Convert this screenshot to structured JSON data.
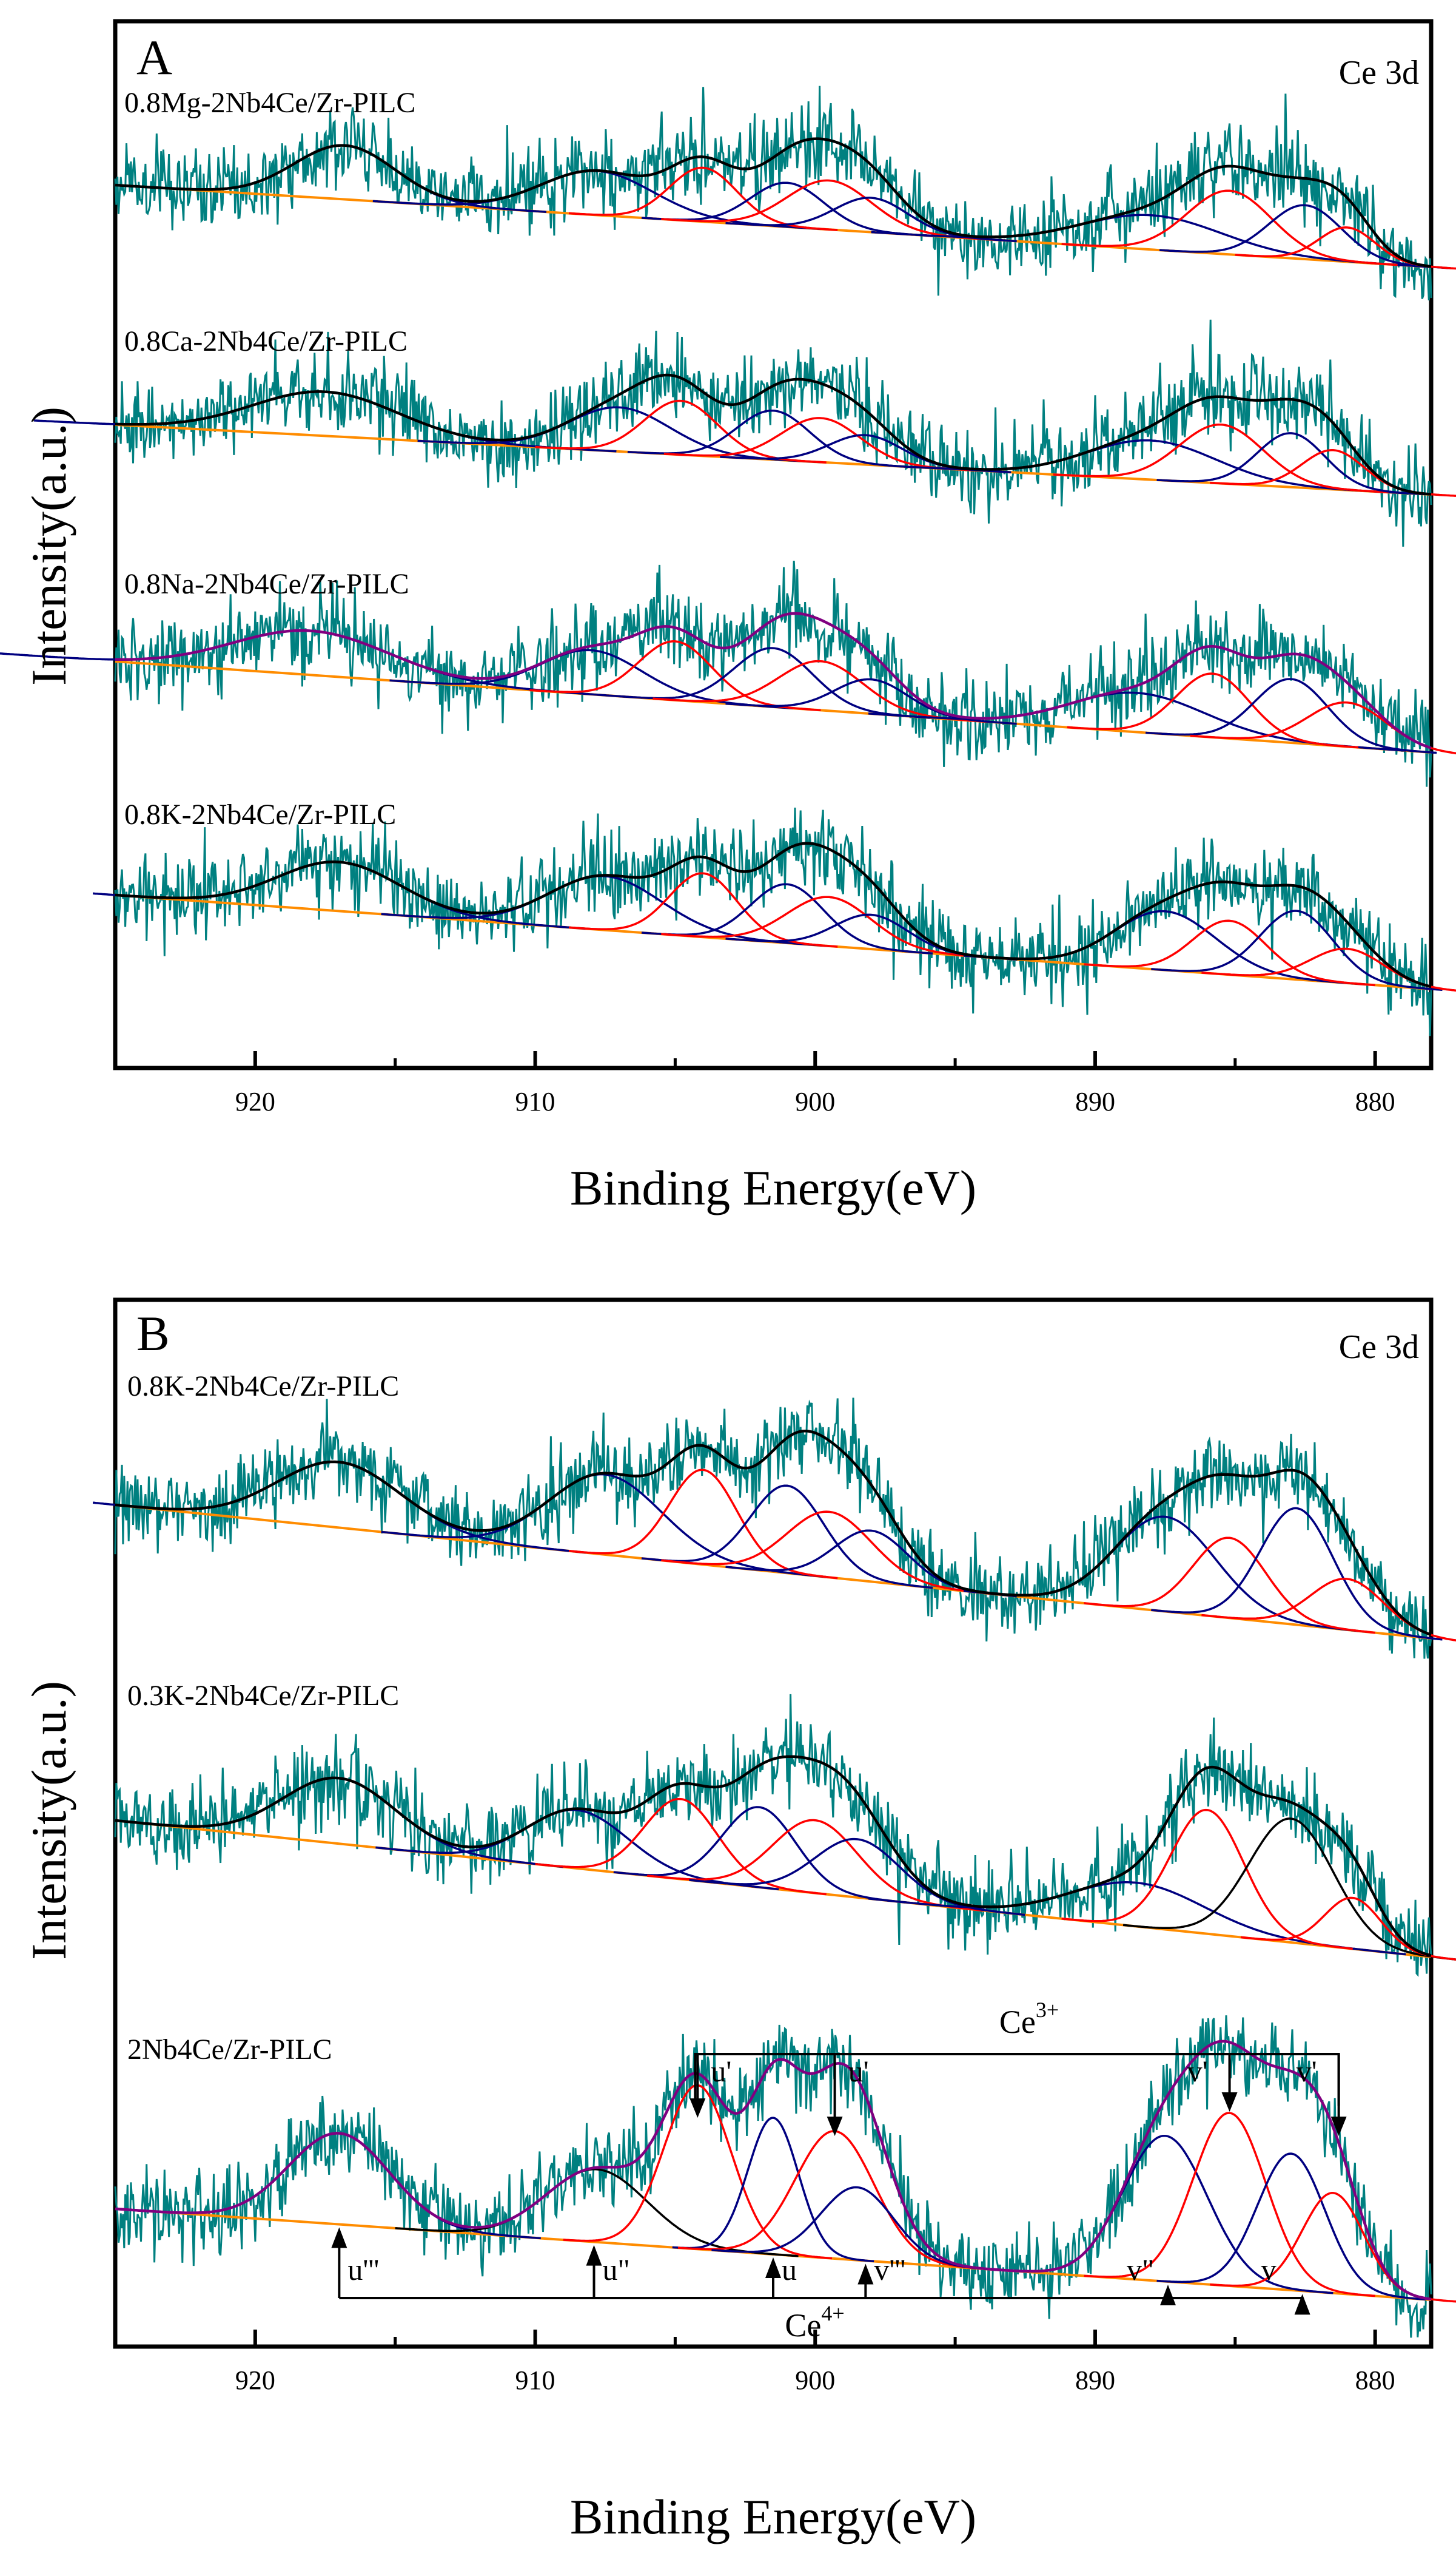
{
  "chart_data": [
    {
      "type": "line",
      "panel": "A",
      "corner_label": "Ce 3d",
      "xlabel": "Binding Energy(eV)",
      "ylabel": "Intensity(a.u.)",
      "xlim": [
        925,
        878
      ],
      "xticks": [
        920,
        910,
        900,
        890,
        880
      ],
      "series": [
        {
          "name": "0.8Mg-2Nb4Ce/Zr-PILC",
          "envelope_color": "#000000",
          "scale": 0.85,
          "peaks": [
            {
              "center": 916.8,
              "height": 0.55,
              "width": 1.8,
              "color": "#000080"
            },
            {
              "center": 907.8,
              "height": 0.45,
              "width": 2.0,
              "color": "#000080"
            },
            {
              "center": 904.0,
              "height": 0.55,
              "width": 1.2,
              "color": "#ff0000"
            },
            {
              "center": 901.0,
              "height": 0.45,
              "width": 1.3,
              "color": "#000080"
            },
            {
              "center": 899.5,
              "height": 0.5,
              "width": 1.5,
              "color": "#ff0000"
            },
            {
              "center": 898.0,
              "height": 0.35,
              "width": 1.3,
              "color": "#000080"
            },
            {
              "center": 888.0,
              "height": 0.35,
              "width": 2.5,
              "color": "#000080"
            },
            {
              "center": 885.2,
              "height": 0.65,
              "width": 1.5,
              "color": "#ff0000"
            },
            {
              "center": 882.5,
              "height": 0.55,
              "width": 1.3,
              "color": "#000080"
            },
            {
              "center": 881.0,
              "height": 0.35,
              "width": 1.0,
              "color": "#ff0000"
            }
          ]
        },
        {
          "name": "0.8Ca-2Nb4Ce/Zr-PILC",
          "envelope_color": "#000000",
          "scale": 0.85,
          "peaks": [
            {
              "center": 917.5,
              "height": 0.45,
              "width": 2.6,
              "color": "#000080"
            },
            {
              "center": 907.0,
              "height": 0.45,
              "width": 1.8,
              "color": "#000080"
            },
            {
              "center": 904.8,
              "height": 0.55,
              "width": 1.3,
              "color": "#ff0000"
            },
            {
              "center": 901.5,
              "height": 0.5,
              "width": 1.3,
              "color": "#000080"
            },
            {
              "center": 899.8,
              "height": 0.45,
              "width": 1.4,
              "color": "#ff0000"
            },
            {
              "center": 898.2,
              "height": 0.3,
              "width": 1.3,
              "color": "#000080"
            },
            {
              "center": 888.0,
              "height": 0.4,
              "width": 2.3,
              "color": "#000080"
            },
            {
              "center": 885.5,
              "height": 0.6,
              "width": 1.5,
              "color": "#ff0000"
            },
            {
              "center": 883.0,
              "height": 0.55,
              "width": 1.2,
              "color": "#000080"
            },
            {
              "center": 881.5,
              "height": 0.4,
              "width": 1.1,
              "color": "#ff0000"
            }
          ]
        },
        {
          "name": "0.8Na-2Nb4Ce/Zr-PILC",
          "envelope_color": "#800080",
          "scale": 0.85,
          "peaks": [
            {
              "center": 918.0,
              "height": 0.45,
              "width": 2.8,
              "color": "#000080"
            },
            {
              "center": 908.0,
              "height": 0.45,
              "width": 1.8,
              "color": "#000080"
            },
            {
              "center": 905.0,
              "height": 0.6,
              "width": 1.3,
              "color": "#ff0000"
            },
            {
              "center": 901.5,
              "height": 0.6,
              "width": 1.4,
              "color": "#000080"
            },
            {
              "center": 899.8,
              "height": 0.5,
              "width": 1.5,
              "color": "#ff0000"
            },
            {
              "center": 898.0,
              "height": 0.35,
              "width": 1.3,
              "color": "#000080"
            },
            {
              "center": 888.5,
              "height": 0.4,
              "width": 2.4,
              "color": "#000080"
            },
            {
              "center": 885.8,
              "height": 0.65,
              "width": 1.3,
              "color": "#ff0000"
            },
            {
              "center": 883.0,
              "height": 0.65,
              "width": 1.3,
              "color": "#000080"
            },
            {
              "center": 881.0,
              "height": 0.45,
              "width": 1.4,
              "color": "#ff0000"
            }
          ]
        },
        {
          "name": "0.8K-2Nb4Ce/Zr-PILC",
          "envelope_color": "#000000",
          "scale": 0.85,
          "peaks": [
            {
              "center": 917.0,
              "height": 0.5,
              "width": 2.2,
              "color": "#000080"
            },
            {
              "center": 907.5,
              "height": 0.55,
              "width": 2.0,
              "color": "#000080"
            },
            {
              "center": 904.0,
              "height": 0.65,
              "width": 1.2,
              "color": "#ff0000"
            },
            {
              "center": 901.0,
              "height": 0.6,
              "width": 1.3,
              "color": "#000080"
            },
            {
              "center": 899.5,
              "height": 0.5,
              "width": 1.5,
              "color": "#ff0000"
            },
            {
              "center": 898.0,
              "height": 0.35,
              "width": 1.3,
              "color": "#000080"
            },
            {
              "center": 887.5,
              "height": 0.6,
              "width": 1.8,
              "color": "#000080"
            },
            {
              "center": 885.2,
              "height": 0.55,
              "width": 1.3,
              "color": "#ff0000"
            },
            {
              "center": 882.8,
              "height": 0.7,
              "width": 1.3,
              "color": "#000080"
            },
            {
              "center": 881.0,
              "height": 0.35,
              "width": 1.3,
              "color": "#ff0000"
            }
          ]
        }
      ]
    },
    {
      "type": "line",
      "panel": "B",
      "corner_label": "Ce 3d",
      "xlabel": "Binding Energy(eV)",
      "ylabel": "Intensity(a.u.)",
      "xlim": [
        925,
        878
      ],
      "xticks": [
        920,
        910,
        900,
        890,
        880
      ],
      "series": [
        {
          "name": "0.8K-2Nb4Ce/Zr-PILC",
          "envelope_color": "#000000",
          "scale": 1.0,
          "peaks": [
            {
              "center": 917.0,
              "height": 0.45,
              "width": 2.2,
              "color": "#000080"
            },
            {
              "center": 907.5,
              "height": 0.55,
              "width": 2.0,
              "color": "#000080"
            },
            {
              "center": 904.0,
              "height": 0.65,
              "width": 1.2,
              "color": "#ff0000"
            },
            {
              "center": 901.0,
              "height": 0.6,
              "width": 1.3,
              "color": "#000080"
            },
            {
              "center": 899.5,
              "height": 0.45,
              "width": 1.5,
              "color": "#ff0000"
            },
            {
              "center": 898.0,
              "height": 0.35,
              "width": 1.3,
              "color": "#000080"
            },
            {
              "center": 887.5,
              "height": 0.65,
              "width": 1.8,
              "color": "#000080"
            },
            {
              "center": 885.2,
              "height": 0.55,
              "width": 1.3,
              "color": "#ff0000"
            },
            {
              "center": 882.8,
              "height": 0.8,
              "width": 1.3,
              "color": "#000080"
            },
            {
              "center": 881.0,
              "height": 0.35,
              "width": 1.3,
              "color": "#ff0000"
            }
          ]
        },
        {
          "name": "0.3K-2Nb4Ce/Zr-PILC",
          "envelope_color": "#000000",
          "scale": 1.0,
          "peaks": [
            {
              "center": 917.0,
              "height": 0.45,
              "width": 2.0,
              "color": "#000080"
            },
            {
              "center": 908.5,
              "height": 0.4,
              "width": 1.8,
              "color": "#000080"
            },
            {
              "center": 904.8,
              "height": 0.55,
              "width": 1.3,
              "color": "#ff0000"
            },
            {
              "center": 902.0,
              "height": 0.55,
              "width": 1.3,
              "color": "#000080"
            },
            {
              "center": 900.0,
              "height": 0.5,
              "width": 1.5,
              "color": "#ff0000"
            },
            {
              "center": 898.5,
              "height": 0.4,
              "width": 1.5,
              "color": "#000080"
            },
            {
              "center": 888.5,
              "height": 0.3,
              "width": 2.4,
              "color": "#000080"
            },
            {
              "center": 886.0,
              "height": 0.85,
              "width": 1.3,
              "color": "#ff0000"
            },
            {
              "center": 883.0,
              "height": 0.85,
              "width": 1.5,
              "color": "#000000"
            },
            {
              "center": 880.8,
              "height": 0.35,
              "width": 1.0,
              "color": "#ff0000"
            }
          ]
        },
        {
          "name": "2Nb4Ce/Zr-PILC",
          "envelope_color": "#800080",
          "scale": 1.0,
          "peaks": [
            {
              "center": 917.0,
              "height": 0.5,
              "width": 1.8,
              "color": "#000080"
            },
            {
              "center": 907.8,
              "height": 0.4,
              "width": 1.8,
              "color": "#000000"
            },
            {
              "center": 904.2,
              "height": 0.9,
              "width": 1.2,
              "color": "#ff0000"
            },
            {
              "center": 901.5,
              "height": 0.75,
              "width": 0.9,
              "color": "#000080"
            },
            {
              "center": 899.3,
              "height": 0.7,
              "width": 1.4,
              "color": "#ff0000"
            },
            {
              "center": 898.5,
              "height": 0.4,
              "width": 1.3,
              "color": "#000080"
            },
            {
              "center": 887.5,
              "height": 0.8,
              "width": 1.5,
              "color": "#000080"
            },
            {
              "center": 885.2,
              "height": 0.95,
              "width": 1.3,
              "color": "#ff0000"
            },
            {
              "center": 883.0,
              "height": 0.75,
              "width": 1.2,
              "color": "#000080"
            },
            {
              "center": 881.5,
              "height": 0.55,
              "width": 1.1,
              "color": "#ff0000"
            }
          ]
        }
      ],
      "annotations": {
        "ce3_label": "Ce",
        "ce3_sup": "3+",
        "ce4_label": "Ce",
        "ce4_sup": "4+",
        "ce3_markers": [
          {
            "label": "u'",
            "x": 904.2
          },
          {
            "label": "u'",
            "x": 899.3
          },
          {
            "label": "v'",
            "x": 885.2
          },
          {
            "label": "v'",
            "x": 881.3
          }
        ],
        "ce4_markers": [
          {
            "label": "u'''",
            "x": 917.0
          },
          {
            "label": "u\"",
            "x": 907.9
          },
          {
            "label": "u",
            "x": 901.5
          },
          {
            "label": "v'''",
            "x": 898.2
          },
          {
            "label": "v\"",
            "x": 887.4
          },
          {
            "label": "v",
            "x": 882.6
          }
        ]
      }
    }
  ],
  "colors": {
    "noise": "#008080",
    "baseline": "#ff8c00",
    "ce3_component": "#ff0000",
    "ce4_component": "#000080",
    "frame": "#000000"
  }
}
